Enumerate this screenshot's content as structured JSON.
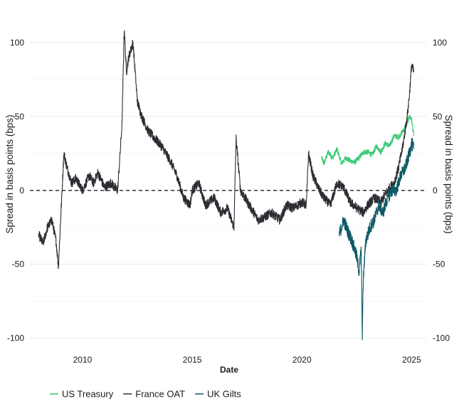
{
  "chart_data": {
    "type": "line",
    "title": "",
    "xlabel": "Date",
    "ylabel": "Spread in basis points (bps)",
    "y2label": "Spread in basis points (bps)",
    "xlim": [
      2007.6,
      2025.7
    ],
    "ylim": [
      -105,
      125
    ],
    "x_ticks": [
      2010,
      2015,
      2020,
      2025
    ],
    "y_ticks": [
      -100,
      -50,
      0,
      50,
      100
    ],
    "grid": true,
    "zero_line": "dashed",
    "legend_position": "bottom-left",
    "series": [
      {
        "name": "US Treasury",
        "color": "#3ec977",
        "x": [
          2020.9,
          2021.0,
          2021.2,
          2021.4,
          2021.6,
          2021.8,
          2022.0,
          2022.2,
          2022.4,
          2022.6,
          2022.8,
          2023.0,
          2023.2,
          2023.4,
          2023.6,
          2023.8,
          2024.0,
          2024.2,
          2024.4,
          2024.6,
          2024.8,
          2024.9,
          2025.0,
          2025.1
        ],
        "values": [
          22,
          18,
          26,
          22,
          28,
          18,
          22,
          20,
          19,
          22,
          26,
          26,
          24,
          30,
          26,
          32,
          30,
          37,
          36,
          40,
          46,
          50,
          48,
          37
        ]
      },
      {
        "name": "France OAT",
        "color": "#2b2d33",
        "x": [
          2008.0,
          2008.2,
          2008.4,
          2008.6,
          2008.8,
          2008.9,
          2009.0,
          2009.15,
          2009.3,
          2009.5,
          2009.7,
          2010.0,
          2010.3,
          2010.5,
          2010.7,
          2011.0,
          2011.3,
          2011.6,
          2011.8,
          2011.9,
          2012.0,
          2012.1,
          2012.3,
          2012.5,
          2012.7,
          2013.0,
          2013.3,
          2013.6,
          2014.0,
          2014.3,
          2014.6,
          2014.9,
          2015.0,
          2015.3,
          2015.6,
          2016.0,
          2016.3,
          2016.6,
          2016.9,
          2017.0,
          2017.2,
          2017.4,
          2017.6,
          2018.0,
          2018.3,
          2018.6,
          2019.0,
          2019.3,
          2019.6,
          2020.0,
          2020.2,
          2020.3,
          2020.5,
          2020.8,
          2021.0,
          2021.3,
          2021.6,
          2021.9,
          2022.2,
          2022.5,
          2022.8,
          2023.0,
          2023.3,
          2023.6,
          2023.9,
          2024.2,
          2024.4,
          2024.6,
          2024.8,
          2024.9,
          2025.0,
          2025.1
        ],
        "values": [
          -30,
          -36,
          -25,
          -20,
          -35,
          -52,
          -20,
          25,
          15,
          5,
          8,
          0,
          10,
          5,
          12,
          2,
          5,
          0,
          45,
          110,
          80,
          90,
          100,
          60,
          50,
          40,
          35,
          30,
          20,
          10,
          -5,
          -10,
          0,
          5,
          -10,
          -5,
          -15,
          -12,
          -25,
          35,
          0,
          -5,
          -10,
          -20,
          -18,
          -15,
          -20,
          -10,
          -12,
          -8,
          -10,
          25,
          10,
          0,
          -5,
          -10,
          5,
          2,
          -8,
          -12,
          -15,
          -10,
          -5,
          -8,
          0,
          5,
          15,
          30,
          50,
          65,
          85,
          80
        ]
      },
      {
        "name": "UK Gilts",
        "color": "#0e5a66",
        "x": [
          2021.7,
          2021.9,
          2022.1,
          2022.3,
          2022.5,
          2022.6,
          2022.7,
          2022.75,
          2022.8,
          2022.9,
          2023.0,
          2023.1,
          2023.3,
          2023.5,
          2023.7,
          2023.9,
          2024.1,
          2024.3,
          2024.5,
          2024.7,
          2024.9,
          2025.0,
          2025.1
        ],
        "values": [
          -30,
          -20,
          -28,
          -35,
          -45,
          -55,
          -40,
          -97,
          -60,
          -35,
          -30,
          -25,
          -20,
          -10,
          -15,
          -5,
          0,
          0,
          10,
          15,
          25,
          32,
          28
        ]
      }
    ]
  }
}
